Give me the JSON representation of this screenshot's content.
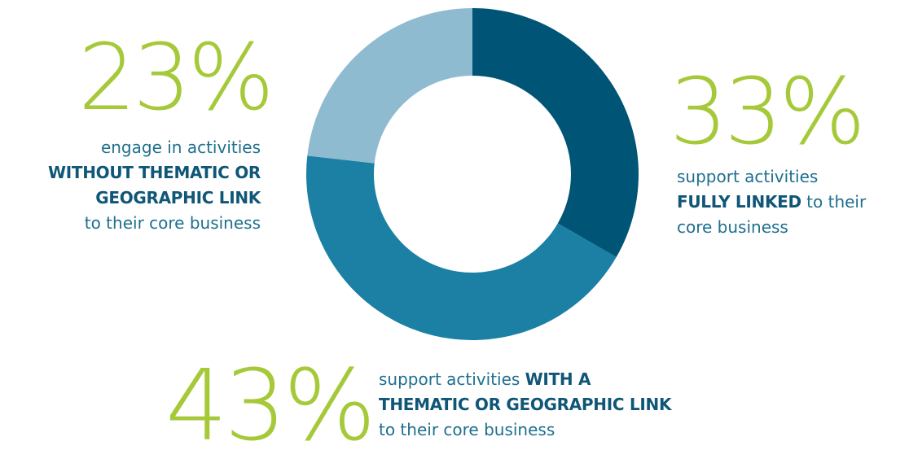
{
  "chart_data": {
    "type": "pie",
    "title": "",
    "hole": true,
    "slices": [
      {
        "value": 33,
        "label": "33%",
        "color": "#005476",
        "desc_plain": "support activities",
        "desc_strong": "FULLY LINKED",
        "desc_tail_a": "to their",
        "desc_tail_b": "core business"
      },
      {
        "value": 43,
        "label": "43%",
        "color": "#1c80a4",
        "desc_plain": "support activities",
        "desc_strong_a": "WITH A",
        "desc_strong_b": "THEMATIC OR GEOGRAPHIC LINK",
        "desc_tail": "to their core business"
      },
      {
        "value": 23,
        "label": "23%",
        "color": "#8fbbd1",
        "desc_plain": "engage in activities",
        "desc_strong_a": "WITHOUT THEMATIC OR",
        "desc_strong_b": "GEOGRAPHIC LINK",
        "desc_tail": "to their core business"
      }
    ]
  }
}
